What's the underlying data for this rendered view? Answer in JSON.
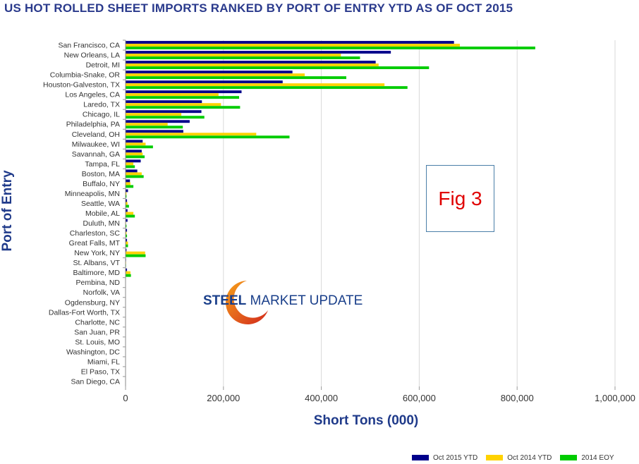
{
  "title": "US HOT ROLLED SHEET IMPORTS RANKED BY PORT OF ENTRY YTD AS OF OCT 2015",
  "annotation": "Fig 3",
  "logo": {
    "part1": "STEEL",
    "part2": " MARKET UPDATE"
  },
  "colors": {
    "oct2015": "#00008b",
    "oct2014": "#ffd200",
    "eoy2014": "#00cc00",
    "axis": "#333333",
    "grid": "#d9d9d9"
  },
  "chart_data": {
    "type": "bar",
    "orientation": "horizontal",
    "title": "US HOT ROLLED SHEET IMPORTS RANKED BY PORT OF ENTRY YTD AS OF OCT 2015",
    "xlabel": "Short Tons (000)",
    "ylabel": "Port of Entry",
    "xlim": [
      0,
      1000000
    ],
    "xticks": [
      0,
      200000,
      400000,
      600000,
      800000,
      1000000
    ],
    "xtick_labels": [
      "0",
      "200,000",
      "400,000",
      "600,000",
      "800,000",
      "1,000,000"
    ],
    "grid": true,
    "legend_position": "bottom-right",
    "categories": [
      "San Francisco, CA",
      "New Orleans, LA",
      "Detroit, MI",
      "Columbia-Snake, OR",
      "Houston-Galveston, TX",
      "Los Angeles, CA",
      "Laredo, TX",
      "Chicago, IL",
      "Philadelphia, PA",
      "Cleveland, OH",
      "Milwaukee, WI",
      "Savannah, GA",
      "Tampa, FL",
      "Boston, MA",
      "Buffalo, NY",
      "Minneapolis, MN",
      "Seattle, WA",
      "Mobile, AL",
      "Duluth, MN",
      "Charleston, SC",
      "Great Falls, MT",
      "New York, NY",
      "St. Albans, VT",
      "Baltimore, MD",
      "Pembina, ND",
      "Norfolk, VA",
      "Ogdensburg, NY",
      "Dallas-Fort Worth, TX",
      "Charlotte, NC",
      "San Juan, PR",
      "St. Louis, MO",
      "Washington, DC",
      "Miami, FL",
      "El Paso, TX",
      "San Diego, CA"
    ],
    "series": [
      {
        "name": "Oct 2015 YTD",
        "values": [
          671000,
          542000,
          511000,
          341000,
          321000,
          237000,
          156000,
          155000,
          131000,
          118000,
          35000,
          33000,
          31000,
          24000,
          9000,
          5000,
          3000,
          4000,
          4000,
          3000,
          3000,
          2000,
          1000,
          3000,
          0,
          0,
          0,
          0,
          0,
          0,
          0,
          0,
          0,
          0,
          0
        ]
      },
      {
        "name": "Oct 2014 YTD",
        "values": [
          683000,
          440000,
          517000,
          366000,
          529000,
          190000,
          195000,
          114000,
          86000,
          267000,
          41000,
          35000,
          16000,
          33000,
          10000,
          2000,
          4000,
          16000,
          1000,
          2000,
          5000,
          40000,
          1000,
          10000,
          0,
          0,
          0,
          0,
          0,
          0,
          0,
          0,
          0,
          0,
          0
        ]
      },
      {
        "name": "2014 EOY",
        "values": [
          837000,
          479000,
          620000,
          451000,
          576000,
          232000,
          234000,
          161000,
          117000,
          335000,
          56000,
          39000,
          19000,
          37000,
          16000,
          2000,
          7000,
          19000,
          2000,
          3000,
          5000,
          41000,
          1000,
          11000,
          0,
          0,
          0,
          0,
          0,
          0,
          0,
          0,
          0,
          0,
          0
        ]
      }
    ]
  }
}
